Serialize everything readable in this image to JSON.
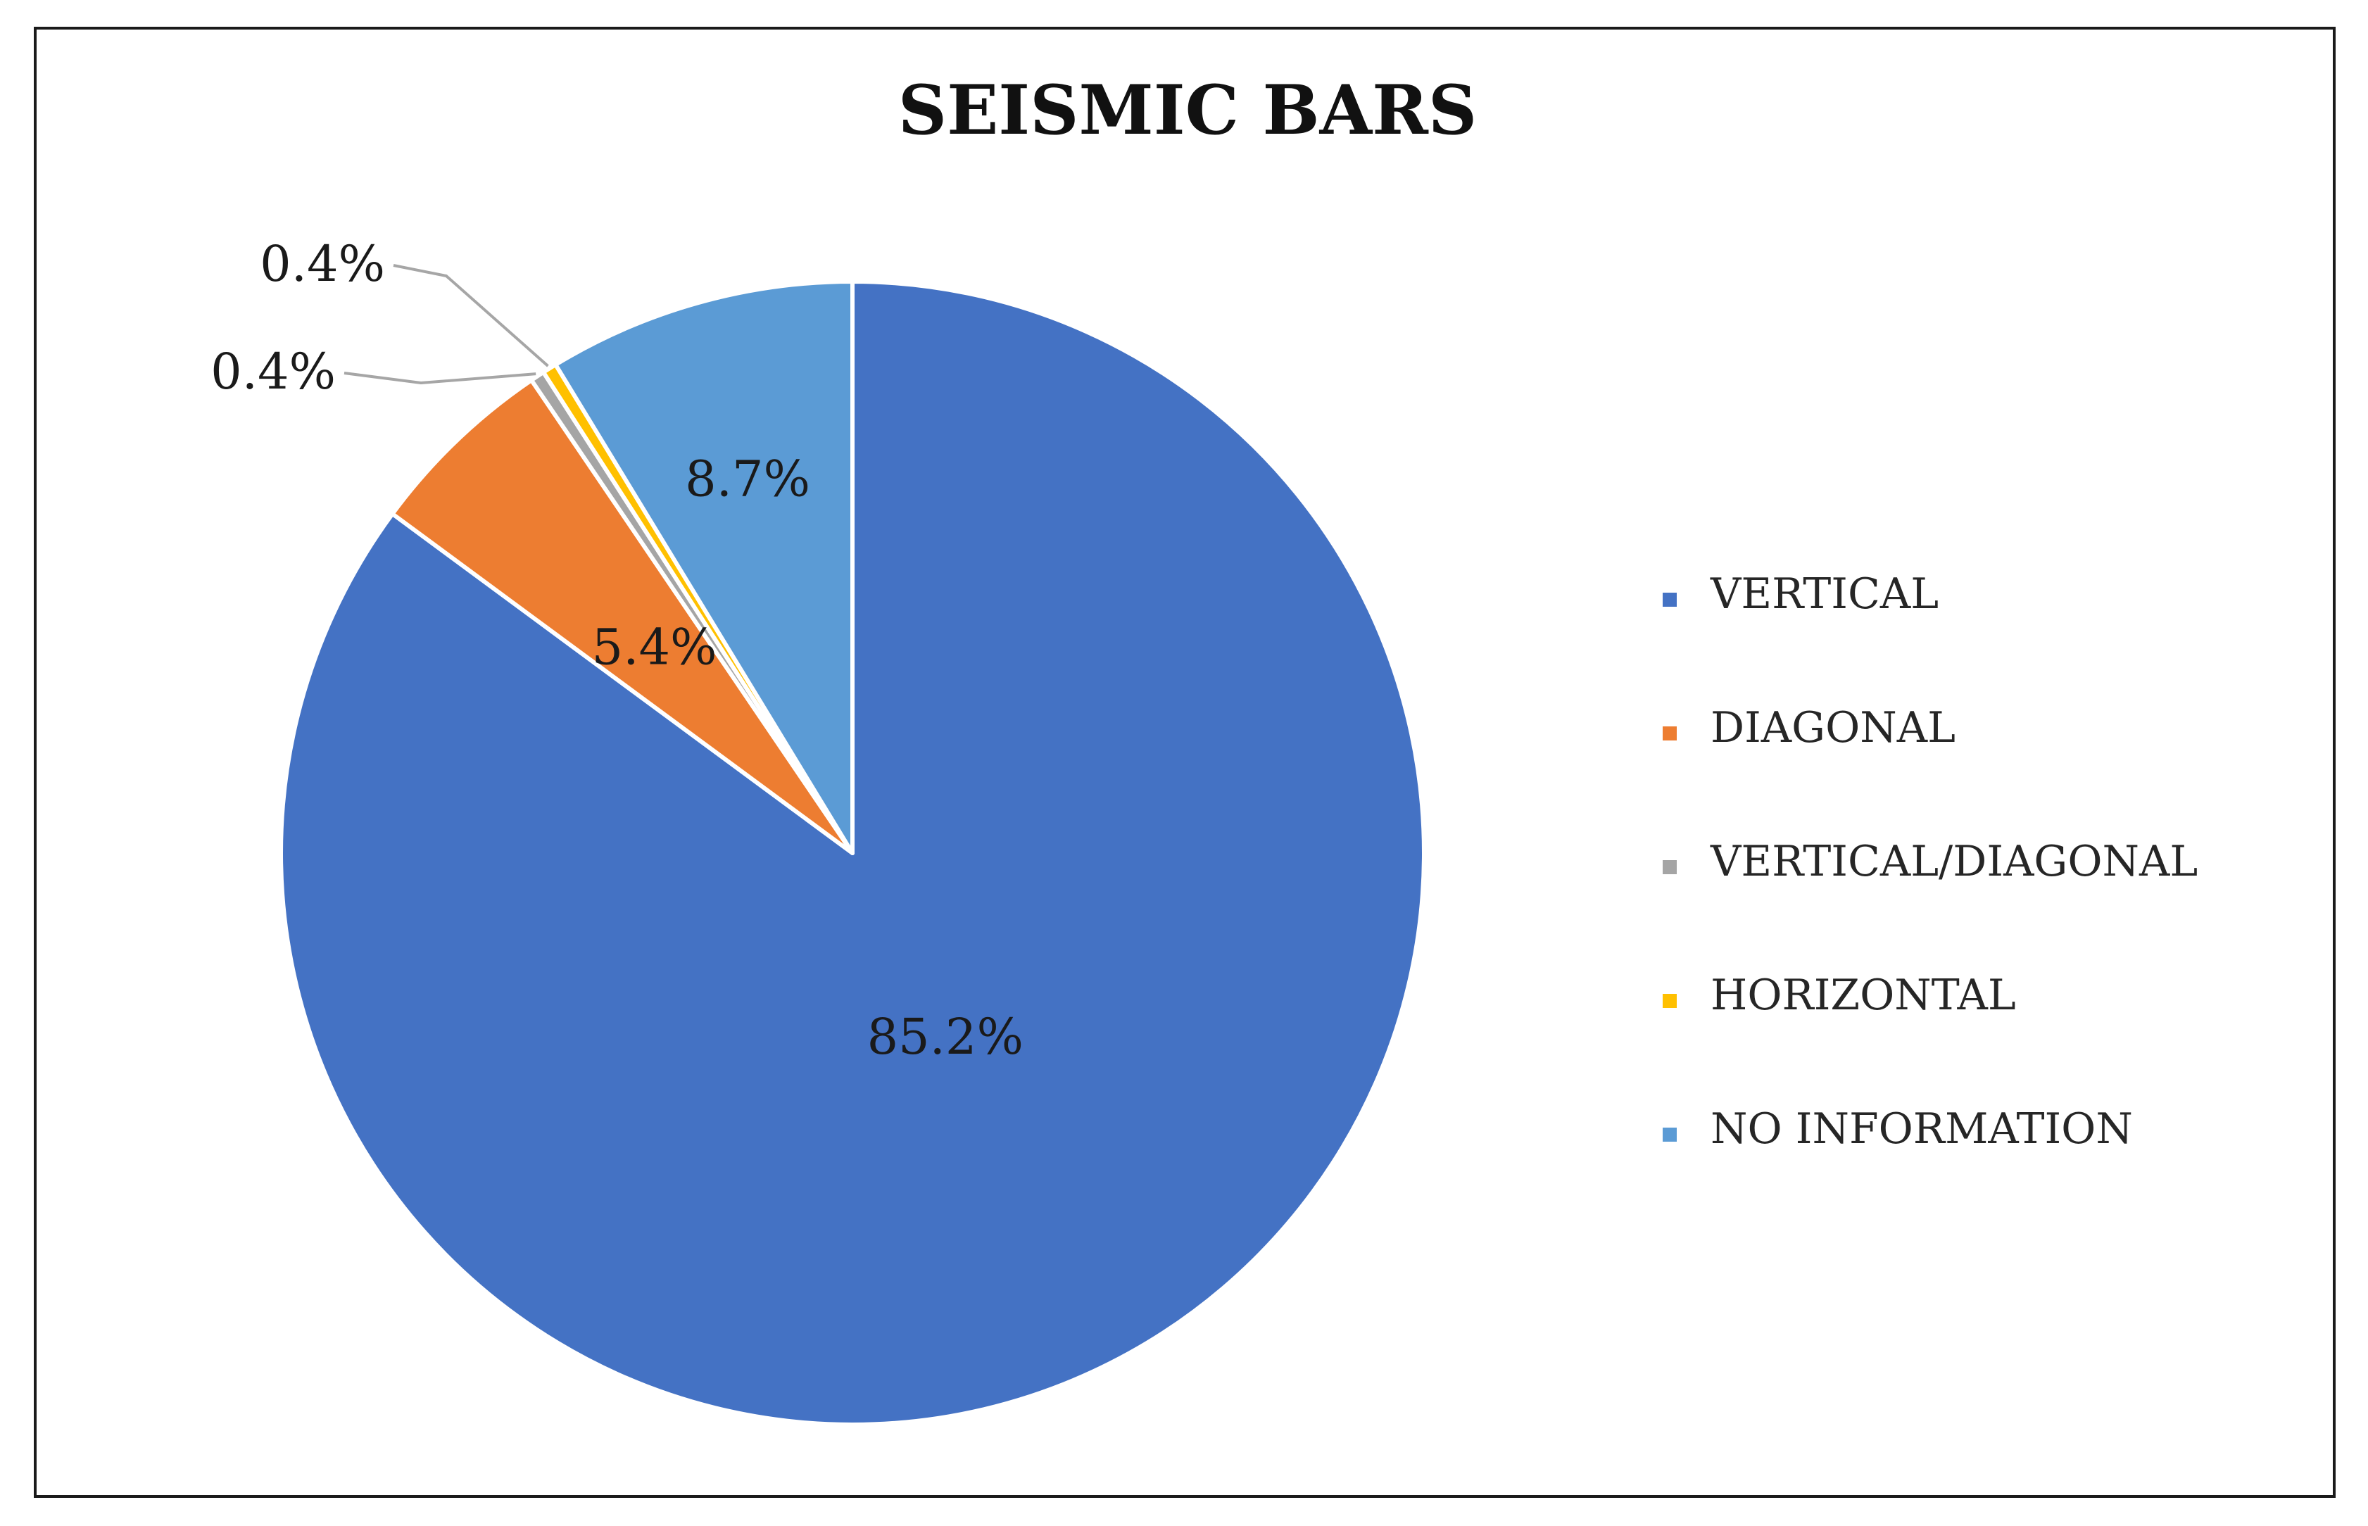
{
  "chart_data": {
    "type": "pie",
    "title": "SEISMIC BARS",
    "categories": [
      "VERTICAL",
      "DIAGONAL",
      "VERTICAL/DIAGONAL",
      "HORIZONTAL",
      "NO INFORMATION"
    ],
    "values": [
      85.2,
      5.4,
      0.4,
      0.4,
      8.7
    ],
    "data_labels": [
      "85.2%",
      "5.4%",
      "0.4%",
      "0.4%",
      "8.7%"
    ],
    "colors": [
      "#4472C4",
      "#ED7D31",
      "#A5A5A5",
      "#FFC000",
      "#5B9BD5"
    ],
    "start_angle_deg": 0,
    "direction": "clockwise",
    "legend_placement": "right"
  }
}
